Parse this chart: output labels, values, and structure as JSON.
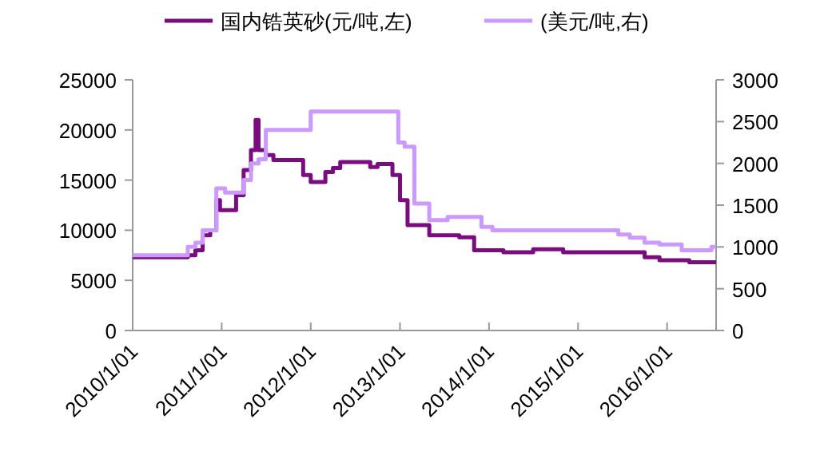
{
  "chart_data": {
    "type": "step",
    "legend": "top",
    "grid": false,
    "xlim": [
      "2010-01-01",
      "2016-07-20"
    ],
    "xticks": [
      {
        "value": "2010-01-01",
        "label": "2010/1/01"
      },
      {
        "value": "2011-01-01",
        "label": "2011/1/01"
      },
      {
        "value": "2012-01-01",
        "label": "2012/1/01"
      },
      {
        "value": "2013-01-01",
        "label": "2013/1/01"
      },
      {
        "value": "2014-01-01",
        "label": "2014/1/01"
      },
      {
        "value": "2015-01-01",
        "label": "2015/1/01"
      },
      {
        "value": "2016-01-01",
        "label": "2016/1/01"
      }
    ],
    "ylim": [
      0,
      25000
    ],
    "yticks": [
      0,
      5000,
      10000,
      15000,
      20000,
      25000
    ],
    "y2lim": [
      0,
      3000
    ],
    "y2ticks": [
      0,
      500,
      1000,
      1500,
      2000,
      2500,
      3000
    ],
    "series": [
      {
        "name": "国内锆英砂(元/吨,左)",
        "color": "#7b0c7f",
        "x": [
          "2010-01-01",
          "2010-08-15",
          "2010-09-15",
          "2010-10-15",
          "2010-11-15",
          "2010-12-10",
          "2010-12-25",
          "2011-03-01",
          "2011-04-01",
          "2011-05-01",
          "2011-05-20",
          "2011-06-01",
          "2011-07-01",
          "2011-08-01",
          "2011-12-01",
          "2012-01-01",
          "2012-03-01",
          "2012-04-01",
          "2012-05-01",
          "2012-09-01",
          "2012-10-01",
          "2012-12-01",
          "2013-01-01",
          "2013-02-01",
          "2013-05-01",
          "2013-09-01",
          "2013-11-01",
          "2014-03-01",
          "2014-07-01",
          "2014-11-01",
          "2015-10-01",
          "2015-12-01",
          "2016-04-01",
          "2016-07-20"
        ],
        "values": [
          7300,
          7500,
          8000,
          9500,
          10000,
          13000,
          12000,
          13500,
          16000,
          18000,
          21000,
          18000,
          17500,
          17000,
          15500,
          14800,
          15800,
          16200,
          16800,
          16300,
          16600,
          15500,
          13000,
          10500,
          9500,
          9300,
          8000,
          7800,
          8100,
          7800,
          7300,
          7000,
          6800,
          6800
        ]
      },
      {
        "name": "(美元/吨,右)",
        "color": "#cc99ff",
        "axis": "y2",
        "x": [
          "2010-01-01",
          "2010-08-15",
          "2010-09-15",
          "2010-10-15",
          "2010-11-15",
          "2010-12-10",
          "2011-01-15",
          "2011-04-01",
          "2011-05-01",
          "2011-06-01",
          "2011-07-01",
          "2012-01-01",
          "2012-12-25",
          "2013-01-20",
          "2013-03-01",
          "2013-05-01",
          "2013-07-15",
          "2013-12-01",
          "2014-01-15",
          "2015-06-15",
          "2015-08-01",
          "2015-10-01",
          "2015-12-01",
          "2016-03-01",
          "2016-07-01",
          "2016-07-20"
        ],
        "values": [
          900,
          1000,
          1050,
          1200,
          1200,
          1700,
          1650,
          1800,
          2000,
          2050,
          2400,
          2620,
          2250,
          2200,
          1520,
          1320,
          1360,
          1240,
          1200,
          1150,
          1110,
          1050,
          1030,
          960,
          1000,
          1000
        ]
      }
    ]
  }
}
